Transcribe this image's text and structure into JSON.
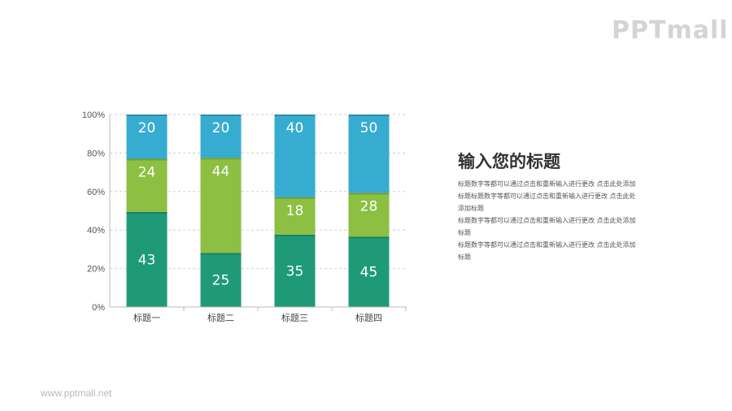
{
  "logo": "PPTmall",
  "footer": "www.pptmall.net",
  "side": {
    "title": "输入您的标题",
    "paragraphs": [
      "标题数字等都可以通过点击和重新输入进行更改 点击此处添加标题标题数字等都可以通过点击和重新输入进行更改 点击此处添加标题",
      "标题数字等都可以通过点击和重新输入进行更改 点击此处添加标题",
      "标题数字等都可以通过点击和重新输入进行更改 点击此处添加标题"
    ]
  },
  "chart_data": {
    "type": "bar",
    "stacked": "percent",
    "categories": [
      "标题一",
      "标题二",
      "标题三",
      "标题四"
    ],
    "series": [
      {
        "values": [
          43,
          25,
          35,
          45
        ],
        "color": "#1f9a78"
      },
      {
        "values": [
          24,
          44,
          18,
          28
        ],
        "color": "#8cbf42"
      },
      {
        "values": [
          20,
          20,
          40,
          50
        ],
        "color": "#36acd0"
      }
    ],
    "ylim": [
      0,
      100
    ],
    "yticks": [
      "0%",
      "20%",
      "40%",
      "60%",
      "80%",
      "100%"
    ],
    "grid": true,
    "data_labels": true
  }
}
